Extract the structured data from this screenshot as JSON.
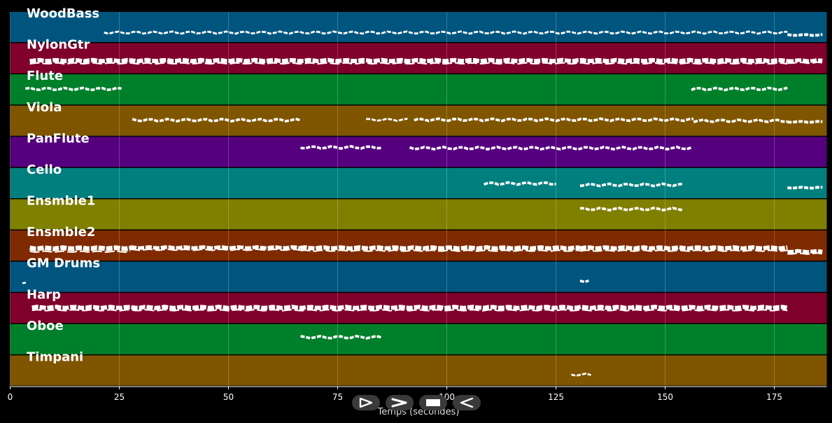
{
  "chart_data": {
    "type": "piano-roll",
    "xlabel": "Temps (secondes)",
    "xlim": [
      0,
      187
    ],
    "xticks": [
      0,
      25,
      50,
      75,
      100,
      125,
      150,
      175
    ],
    "grid": true,
    "tracks": [
      {
        "name": "WoodBass",
        "color": "#00557f",
        "segments": [
          [
            21.5,
            178,
            46.5,
            0.5
          ],
          [
            178,
            186,
            50,
            1.2
          ]
        ]
      },
      {
        "name": "NylonGtr",
        "color": "#7f002a",
        "segments": [
          [
            4.5,
            178,
            86.5,
            2.5
          ],
          [
            178,
            186,
            86.5,
            2
          ]
        ]
      },
      {
        "name": "Flute",
        "color": "#007f2a",
        "segments": [
          [
            3.5,
            25.5,
            127,
            1
          ],
          [
            156,
            178,
            127,
            1
          ]
        ]
      },
      {
        "name": "Viola",
        "color": "#7f5500",
        "segments": [
          [
            28,
            66.5,
            171.5,
            1
          ],
          [
            81.5,
            91,
            171,
            0.5
          ],
          [
            92.5,
            156.5,
            171,
            1
          ],
          [
            156.5,
            178,
            172.5,
            1
          ],
          [
            178,
            186,
            174,
            1.2
          ]
        ]
      },
      {
        "name": "PanFlute",
        "color": "#55007f",
        "segments": [
          [
            66.5,
            85,
            210.5,
            1
          ],
          [
            91.5,
            156,
            211.5,
            1
          ]
        ]
      },
      {
        "name": "Cello",
        "color": "#007f7f",
        "segments": [
          [
            108.5,
            125,
            262,
            1
          ],
          [
            130.5,
            154,
            264,
            1
          ],
          [
            178,
            186,
            268,
            1.2
          ]
        ]
      },
      {
        "name": "Ensmble1",
        "color": "#7f7f00",
        "segments": [
          [
            130.5,
            154,
            298.5,
            1
          ]
        ]
      },
      {
        "name": "Ensmble2",
        "color": "#7f2a00",
        "segments": [
          [
            4.5,
            27.5,
            354.5,
            3
          ],
          [
            27.5,
            66.5,
            353.5,
            2
          ],
          [
            66.5,
            130.5,
            354,
            2.5
          ],
          [
            130.5,
            178,
            354,
            2.5
          ],
          [
            178,
            186,
            359,
            2
          ]
        ]
      },
      {
        "name": "GM Drums",
        "color": "#00557f",
        "segments": [
          [
            2.8,
            3.6,
            403,
            0.3
          ],
          [
            130.5,
            132.5,
            401,
            1
          ]
        ]
      },
      {
        "name": "Harp",
        "color": "#7f002a",
        "segments": [
          [
            5,
            178,
            439,
            2.5
          ]
        ]
      },
      {
        "name": "Oboe",
        "color": "#007f2a",
        "segments": [
          [
            66.5,
            85,
            481.5,
            1
          ]
        ]
      },
      {
        "name": "Timpani",
        "color": "#7f5500",
        "segments": [
          [
            128.5,
            133,
            535,
            0.5
          ]
        ]
      }
    ]
  },
  "controls": [
    {
      "name": "play-button",
      "glyph": "play-outline-icon"
    },
    {
      "name": "forward-button",
      "glyph": "chevron-right-icon"
    },
    {
      "name": "stop-button",
      "glyph": "stop-icon"
    },
    {
      "name": "rewind-button",
      "glyph": "rewind-outline-icon"
    }
  ]
}
